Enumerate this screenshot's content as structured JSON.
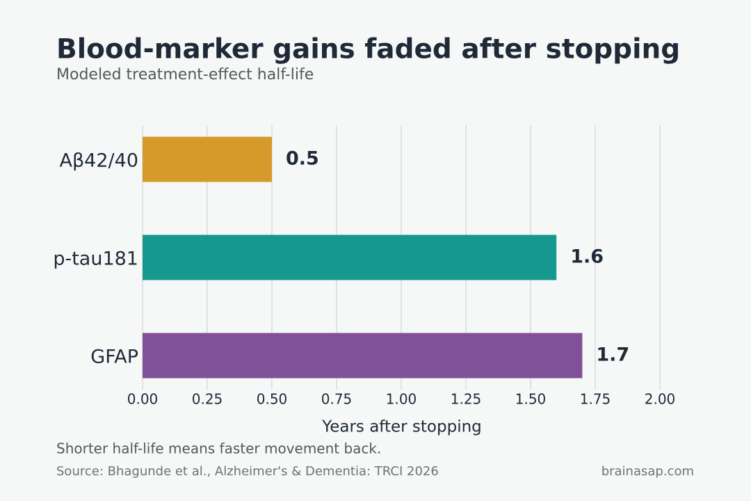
{
  "chart_data": {
    "type": "hbar",
    "title": "Blood-marker gains faded after stopping",
    "subtitle": "Modeled treatment-effect half-life",
    "x_label": "Years after stopping",
    "categories": [
      "Aβ42/40",
      "p-tau181",
      "GFAP"
    ],
    "values": [
      0.5,
      1.6,
      1.7
    ],
    "colors": [
      "#d49a2a",
      "#16988e",
      "#805198"
    ],
    "xlim": [
      0,
      2.0
    ],
    "xticks": [
      {
        "value": 0,
        "label": "0.00"
      },
      {
        "value": 0.25,
        "label": "0.25"
      },
      {
        "value": 0.5,
        "label": "0.50"
      },
      {
        "value": 0.75,
        "label": "0.75"
      },
      {
        "value": 1.0,
        "label": "1.00"
      },
      {
        "value": 1.25,
        "label": "1.25"
      },
      {
        "value": 1.5,
        "label": "1.50"
      },
      {
        "value": 1.75,
        "label": "1.75"
      },
      {
        "value": 2.0,
        "label": "2.00"
      }
    ],
    "grid": true,
    "note": "Shorter half-life means faster movement back.",
    "source": "Source: Bhagunde et al., Alzheimer's & Dementia: TRCI 2026",
    "credit": "brainasap.com"
  }
}
